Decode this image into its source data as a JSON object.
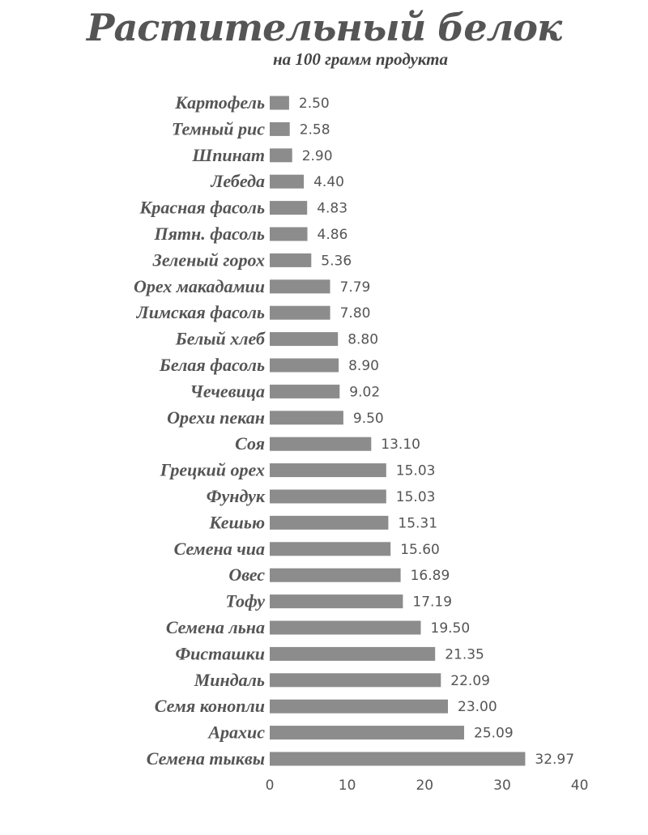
{
  "chart_data": {
    "type": "bar",
    "orientation": "horizontal",
    "title": "Растительный белок",
    "subtitle": "на 100 грамм продукта",
    "xlabel": "",
    "ylabel": "",
    "xlim": [
      0,
      40
    ],
    "xticks": [
      0,
      10,
      20,
      30,
      40
    ],
    "grid": false,
    "bar_color": "#8c8c8c",
    "categories": [
      "Картофель",
      "Темный рис",
      "Шпинат",
      "Лебеда",
      "Красная фасоль",
      "Пятн. фасоль",
      "Зеленый горох",
      "Орех макадамии",
      "Лимская фасоль",
      "Белый хлеб",
      "Белая фасоль",
      "Чечевица",
      "Орехи пекан",
      "Соя",
      "Грецкий орех",
      "Фундук",
      "Кешью",
      "Семена чиа",
      "Овес",
      "Тофу",
      "Семена льна",
      "Фисташки",
      "Миндаль",
      "Семя конопли",
      "Арахис",
      "Семена тыквы"
    ],
    "values": [
      2.5,
      2.58,
      2.9,
      4.4,
      4.83,
      4.86,
      5.36,
      7.79,
      7.8,
      8.8,
      8.9,
      9.02,
      9.5,
      13.1,
      15.03,
      15.03,
      15.31,
      15.6,
      16.89,
      17.19,
      19.5,
      21.35,
      22.09,
      23.0,
      25.09,
      32.97
    ],
    "value_labels": [
      "2.50",
      "2.58",
      "2.90",
      "4.40",
      "4.83",
      "4.86",
      "5.36",
      "7.79",
      "7.80",
      "8.80",
      "8.90",
      "9.02",
      "9.50",
      "13.10",
      "15.03",
      "15.03",
      "15.31",
      "15.60",
      "16.89",
      "17.19",
      "19.50",
      "21.35",
      "22.09",
      "23.00",
      "25.09",
      "32.97"
    ]
  }
}
